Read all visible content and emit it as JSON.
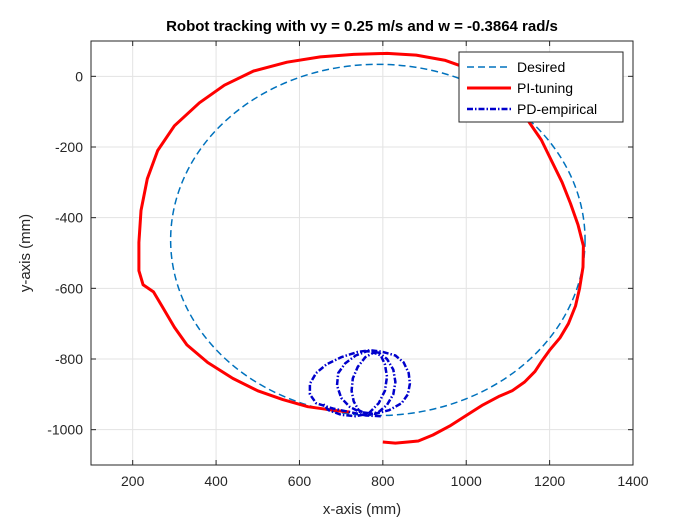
{
  "chart_data": {
    "type": "line",
    "title": "Robot tracking with vy = 0.25 m/s and w = -0.3864 rad/s",
    "xlabel": "x-axis (mm)",
    "ylabel": "y-axis (mm)",
    "xlim": [
      100,
      1400
    ],
    "ylim": [
      -1100,
      100
    ],
    "xticks": [
      200,
      400,
      600,
      800,
      1000,
      1200,
      1400
    ],
    "yticks": [
      0,
      -200,
      -400,
      -600,
      -800,
      -1000
    ],
    "grid": true,
    "legend_position": "top-right",
    "series": [
      {
        "name": "Desired",
        "color": "#0072BD",
        "style": "dashed",
        "shape": "circle",
        "center": [
          788,
          -463
        ],
        "radius": 497
      },
      {
        "name": "PI-tuning",
        "color": "#ff0000",
        "style": "solid",
        "points": [
          [
            800,
            -1035
          ],
          [
            830,
            -1038
          ],
          [
            860,
            -1035
          ],
          [
            885,
            -1032
          ],
          [
            920,
            -1015
          ],
          [
            960,
            -990
          ],
          [
            1000,
            -960
          ],
          [
            1040,
            -930
          ],
          [
            1080,
            -905
          ],
          [
            1110,
            -890
          ],
          [
            1140,
            -865
          ],
          [
            1165,
            -835
          ],
          [
            1180,
            -808
          ],
          [
            1200,
            -775
          ],
          [
            1225,
            -740
          ],
          [
            1245,
            -700
          ],
          [
            1262,
            -650
          ],
          [
            1272,
            -600
          ],
          [
            1280,
            -540
          ],
          [
            1281,
            -480
          ],
          [
            1268,
            -420
          ],
          [
            1250,
            -360
          ],
          [
            1230,
            -300
          ],
          [
            1205,
            -240
          ],
          [
            1180,
            -180
          ],
          [
            1145,
            -120
          ],
          [
            1110,
            -70
          ],
          [
            1065,
            -20
          ],
          [
            1010,
            20
          ],
          [
            950,
            45
          ],
          [
            880,
            60
          ],
          [
            810,
            65
          ],
          [
            730,
            62
          ],
          [
            650,
            55
          ],
          [
            570,
            40
          ],
          [
            490,
            15
          ],
          [
            420,
            -25
          ],
          [
            360,
            -75
          ],
          [
            300,
            -140
          ],
          [
            260,
            -210
          ],
          [
            235,
            -290
          ],
          [
            220,
            -380
          ],
          [
            215,
            -470
          ],
          [
            215,
            -550
          ],
          [
            225,
            -590
          ],
          [
            250,
            -610
          ],
          [
            270,
            -650
          ],
          [
            300,
            -710
          ],
          [
            330,
            -760
          ],
          [
            380,
            -810
          ],
          [
            440,
            -855
          ],
          [
            500,
            -890
          ],
          [
            560,
            -915
          ],
          [
            620,
            -935
          ],
          [
            680,
            -945
          ],
          [
            720,
            -950
          ]
        ]
      },
      {
        "name": "PD-empirical",
        "color": "#0000cc",
        "style": "dashdot",
        "points": [
          [
            795,
            -962
          ],
          [
            760,
            -960
          ],
          [
            720,
            -950
          ],
          [
            680,
            -940
          ],
          [
            640,
            -925
          ],
          [
            625,
            -900
          ],
          [
            625,
            -870
          ],
          [
            640,
            -840
          ],
          [
            665,
            -815
          ],
          [
            700,
            -795
          ],
          [
            740,
            -780
          ],
          [
            770,
            -775
          ],
          [
            800,
            -780
          ],
          [
            830,
            -790
          ],
          [
            850,
            -810
          ],
          [
            862,
            -840
          ],
          [
            865,
            -870
          ],
          [
            860,
            -900
          ],
          [
            845,
            -925
          ],
          [
            815,
            -945
          ],
          [
            780,
            -955
          ],
          [
            745,
            -950
          ],
          [
            720,
            -935
          ],
          [
            700,
            -910
          ],
          [
            690,
            -875
          ],
          [
            693,
            -840
          ],
          [
            710,
            -812
          ],
          [
            735,
            -790
          ],
          [
            762,
            -778
          ],
          [
            790,
            -782
          ],
          [
            810,
            -800
          ],
          [
            825,
            -830
          ],
          [
            830,
            -865
          ],
          [
            825,
            -900
          ],
          [
            810,
            -930
          ],
          [
            790,
            -950
          ],
          [
            765,
            -958
          ],
          [
            742,
            -945
          ],
          [
            730,
            -920
          ],
          [
            725,
            -890
          ],
          [
            728,
            -855
          ],
          [
            740,
            -822
          ],
          [
            758,
            -795
          ],
          [
            778,
            -782
          ],
          [
            795,
            -790
          ],
          [
            805,
            -815
          ],
          [
            810,
            -850
          ],
          [
            805,
            -890
          ],
          [
            790,
            -925
          ],
          [
            765,
            -955
          ],
          [
            735,
            -962
          ],
          [
            700,
            -958
          ],
          [
            670,
            -945
          ],
          [
            655,
            -925
          ]
        ]
      }
    ]
  }
}
